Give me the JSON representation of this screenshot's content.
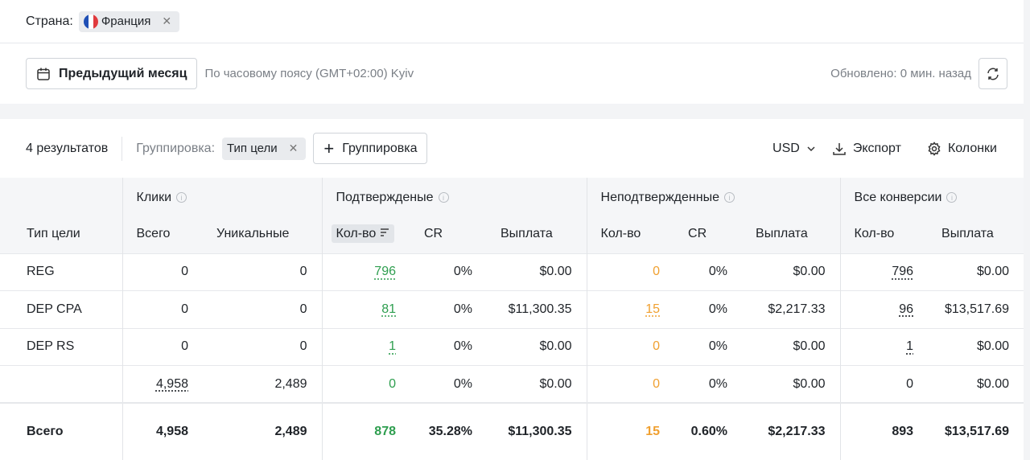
{
  "filter": {
    "label": "Страна:",
    "value": "Франция"
  },
  "toolbar": {
    "period": "Предыдущий месяц",
    "timezone": "По часовому поясу (GMT+02:00) Kyiv",
    "updated": "Обновлено: 0 мин. назад"
  },
  "results": {
    "count": "4 результатов",
    "grouping_label": "Группировка:",
    "grouping_chip": "Тип цели",
    "add_grouping": "Группировка",
    "currency": "USD",
    "export": "Экспорт",
    "columns": "Колонки"
  },
  "table": {
    "group_headers": [
      "Клики",
      "Подтвержденые",
      "Неподтвержденные",
      "Все конверсии"
    ],
    "columns": [
      "Тип цели",
      "Всего",
      "Уникальные",
      "Кол-во",
      "CR",
      "Выплата",
      "Кол-во",
      "CR",
      "Выплата",
      "Кол-во",
      "Выплата"
    ],
    "rows": [
      [
        "REG",
        "0",
        "0",
        "796",
        "0%",
        "$0.00",
        "0",
        "0%",
        "$0.00",
        "796",
        "$0.00"
      ],
      [
        "DEP CPA",
        "0",
        "0",
        "81",
        "0%",
        "$11,300.35",
        "15",
        "0%",
        "$2,217.33",
        "96",
        "$13,517.69"
      ],
      [
        "DEP RS",
        "0",
        "0",
        "1",
        "0%",
        "$0.00",
        "0",
        "0%",
        "$0.00",
        "1",
        "$0.00"
      ],
      [
        null,
        "4,958",
        "2,489",
        "0",
        "0%",
        "$0.00",
        "0",
        "0%",
        "$0.00",
        "0",
        "$0.00"
      ]
    ],
    "total": [
      "Всего",
      "4,958",
      "2,489",
      "878",
      "35.28%",
      "$11,300.35",
      "15",
      "0.60%",
      "$2,217.33",
      "893",
      "$13,517.69"
    ]
  }
}
